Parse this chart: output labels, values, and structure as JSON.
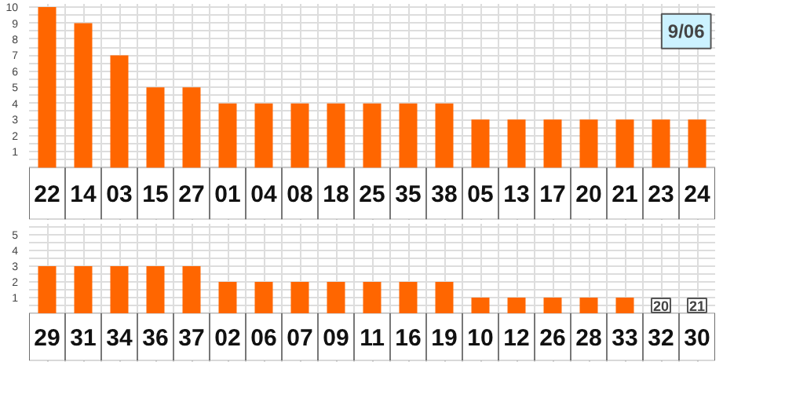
{
  "chart_data": [
    {
      "type": "bar",
      "categories": [
        "22",
        "14",
        "03",
        "15",
        "27",
        "01",
        "04",
        "08",
        "18",
        "25",
        "35",
        "38",
        "05",
        "13",
        "17",
        "20",
        "21",
        "23",
        "24"
      ],
      "values": [
        10,
        9,
        7,
        5,
        5,
        4,
        4,
        4,
        4,
        4,
        4,
        4,
        3,
        3,
        3,
        3,
        3,
        3,
        3
      ],
      "color": "#ff6600",
      "ylim": [
        0,
        10
      ],
      "yticks": [
        1,
        2,
        3,
        4,
        5,
        6,
        7,
        8,
        9,
        10
      ],
      "grid": true,
      "annotations": [
        "9/06"
      ]
    },
    {
      "type": "bar",
      "categories": [
        "29",
        "31",
        "34",
        "36",
        "37",
        "02",
        "06",
        "07",
        "09",
        "11",
        "16",
        "19",
        "10",
        "12",
        "26",
        "28",
        "33",
        "32",
        "30"
      ],
      "values": [
        3,
        3,
        3,
        3,
        3,
        2,
        2,
        2,
        2,
        2,
        2,
        2,
        1,
        1,
        1,
        1,
        1,
        0,
        0
      ],
      "color": "#ff6600",
      "ylim": [
        0,
        5.5
      ],
      "yticks": [
        1,
        2,
        3,
        4,
        5
      ],
      "grid": true,
      "annotations": [
        {
          "text": "20",
          "x": "32",
          "y": 0.5
        },
        {
          "text": "21",
          "x": "30",
          "y": 0.5
        }
      ]
    }
  ]
}
